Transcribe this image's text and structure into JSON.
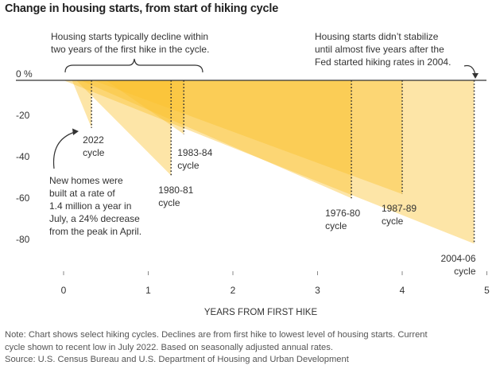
{
  "title": "Change in housing starts, from start of hiking cycle",
  "chart_data": {
    "type": "area",
    "xlabel": "YEARS FROM FIRST HIKE",
    "ylabel": "",
    "xlim": [
      -0.7,
      5.05
    ],
    "ylim": [
      -92,
      0
    ],
    "x_ticks": [
      0,
      1,
      2,
      3,
      4,
      5
    ],
    "x_tick_labels": [
      "0",
      "1",
      "2",
      "3",
      "4",
      "5"
    ],
    "y_ticks": [
      0,
      -20,
      -40,
      -60,
      -80
    ],
    "y_tick_labels": [
      "0 %",
      "-20",
      "-40",
      "-60",
      "-80"
    ],
    "grid": false,
    "series": [
      {
        "name": "2004-06 cycle",
        "start_x": 0.0,
        "trough_x": 4.85,
        "trough_y": -79,
        "label_lines": [
          "2004-06",
          "cycle"
        ]
      },
      {
        "name": "1976-80 cycle",
        "start_x": 0.2,
        "trough_x": 3.4,
        "trough_y": -57,
        "label_lines": [
          "1976-80",
          "cycle"
        ]
      },
      {
        "name": "1987-89 cycle",
        "start_x": 0.35,
        "trough_x": 4.0,
        "trough_y": -55,
        "label_lines": [
          "1987-89",
          "cycle"
        ]
      },
      {
        "name": "1980-81 cycle",
        "start_x": 0.15,
        "trough_x": 1.27,
        "trough_y": -46,
        "label_lines": [
          "1980-81",
          "cycle"
        ]
      },
      {
        "name": "1983-84 cycle",
        "start_x": 0.5,
        "trough_x": 1.42,
        "trough_y": -26,
        "label_lines": [
          "1983-84",
          "cycle"
        ]
      },
      {
        "name": "2022 cycle",
        "start_x": 0.1,
        "trough_x": 0.33,
        "trough_y": -23,
        "label_lines": [
          "2022",
          "cycle"
        ]
      }
    ],
    "annotations": [
      {
        "name": "two-years",
        "lines": [
          "Housing starts typically decline within",
          "two years of the first hike in the cycle."
        ]
      },
      {
        "name": "five-years",
        "lines": [
          "Housing starts didn’t stabilize",
          "until almost five years after the",
          "Fed started hiking rates in 2004."
        ]
      },
      {
        "name": "new-homes",
        "lines": [
          "New homes were",
          "built at a rate of",
          "1.4 million a year in",
          "July, a 24% decrease",
          "from the peak in April."
        ]
      }
    ],
    "colors": {
      "fill": "#fbc02d",
      "fill_opacity": 0.42,
      "axis": "#333333",
      "text": "#333333",
      "leader": "#333333"
    }
  },
  "footnotes": [
    "Note: Chart shows select hiking cycles. Declines are from first hike to lowest level of housing starts. Current",
    "cycle shown to recent low in July 2022. Based on seasonally adjusted annual rates.",
    "Source: U.S. Census Bureau and U.S. Department of Housing and Urban Development"
  ]
}
